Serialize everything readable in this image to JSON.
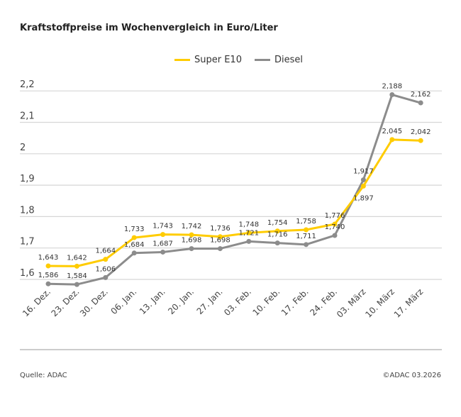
{
  "chart_data": {
    "type": "line",
    "title": "Kraftstoffpreise im Wochenvergleich in Euro/Liter",
    "categories": [
      "16. Dez.",
      "23. Dez.",
      "30. Dez.",
      "06. Jan.",
      "13. Jan.",
      "20. Jan.",
      "27. Jan.",
      "03. Feb.",
      "10. Feb.",
      "17. Feb.",
      "24. Feb.",
      "03. März",
      "10. März",
      "17. März"
    ],
    "series": [
      {
        "name": "Super E10",
        "color": "#ffcc00",
        "values": [
          1.643,
          1.642,
          1.664,
          1.733,
          1.743,
          1.742,
          1.736,
          1.748,
          1.754,
          1.758,
          1.776,
          1.897,
          2.045,
          2.042
        ],
        "labels": [
          "1,643",
          "1,642",
          "1,664",
          "1,733",
          "1,743",
          "1,742",
          "1,736",
          "1,748",
          "1,754",
          "1,758",
          "1,776",
          "1,897",
          "2,045",
          "2,042"
        ]
      },
      {
        "name": "Diesel",
        "color": "#8c8c8c",
        "values": [
          1.586,
          1.584,
          1.606,
          1.684,
          1.687,
          1.698,
          1.698,
          1.721,
          1.716,
          1.711,
          1.74,
          1.917,
          2.188,
          2.162
        ],
        "labels": [
          "1,586",
          "1,584",
          "1,606",
          "1,684",
          "1,687",
          "1,698",
          "1,698",
          "1,721",
          "1,716",
          "1,711",
          "1,740",
          "1,917",
          "2,188",
          "2,162"
        ]
      }
    ],
    "yticks": [
      1.6,
      1.7,
      1.8,
      1.9,
      2.0,
      2.1,
      2.2
    ],
    "ytick_labels": [
      "1,6",
      "1,7",
      "1,8",
      "1,9",
      "2",
      "2,1",
      "2,2"
    ],
    "ylim": [
      1.6,
      2.2
    ],
    "grid": true,
    "legend": "top-center"
  },
  "footer": {
    "source": "Quelle: ADAC",
    "copyright": "©ADAC 03.2026"
  }
}
